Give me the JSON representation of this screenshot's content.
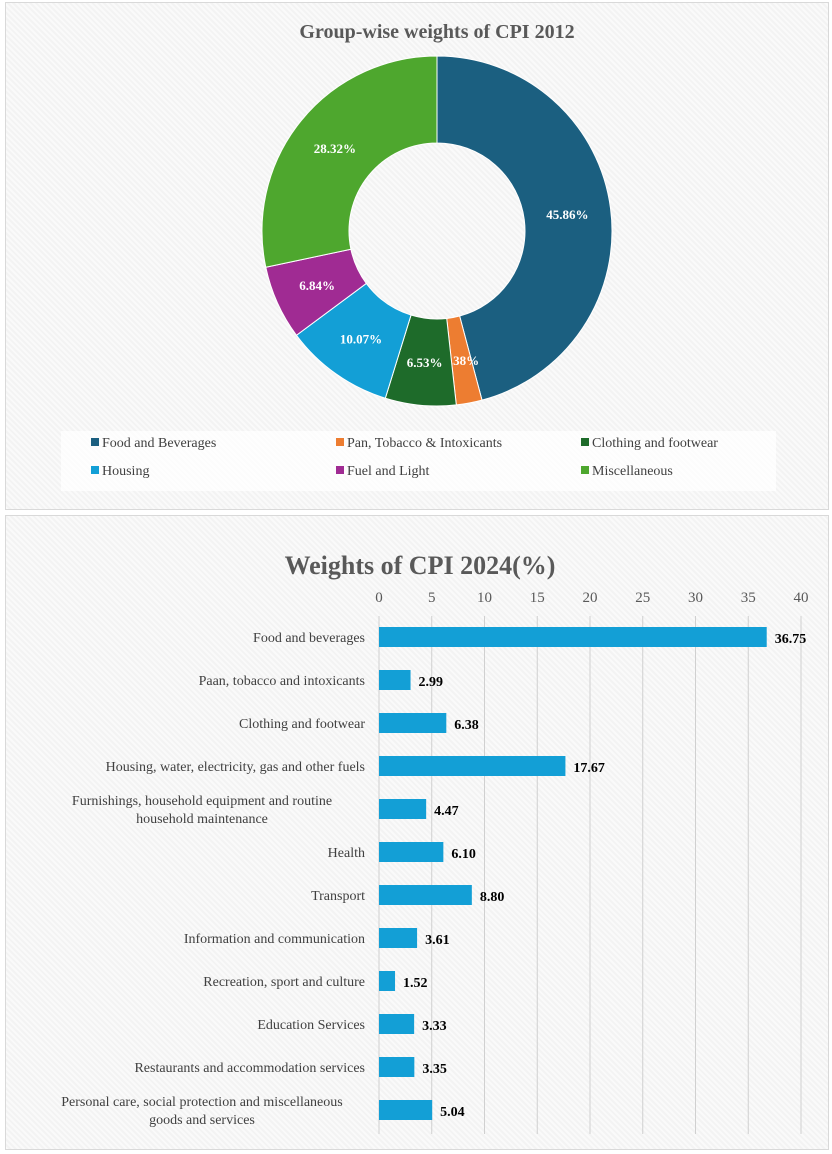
{
  "chart_data": [
    {
      "type": "pie",
      "subtype": "donut",
      "title": "Group-wise weights of CPI 2012",
      "categories": [
        "Food and Beverages",
        "Pan, Tobacco & Intoxicants",
        "Clothing and footwear",
        "Housing",
        "Fuel and Light",
        "Miscellaneous"
      ],
      "values": [
        45.86,
        2.38,
        6.53,
        10.07,
        6.84,
        28.32
      ],
      "labels": [
        "45.86%",
        "2.38%",
        "6.53%",
        "10.07%",
        "6.84%",
        "28.32%"
      ],
      "colors": [
        "#1b5f80",
        "#ed7d31",
        "#1e6b2a",
        "#139fd6",
        "#a02b93",
        "#4ea72e"
      ],
      "legend": "bottom"
    },
    {
      "type": "bar",
      "orientation": "horizontal",
      "title": "Weights of CPI 2024(%)",
      "categories": [
        "Food and beverages",
        "Paan, tobacco and intoxicants",
        "Clothing and footwear",
        "Housing, water, electricity, gas and other fuels",
        "Furnishings, household equipment and routine household maintenance",
        "Health",
        "Transport",
        "Information and communication",
        "Recreation, sport and culture",
        "Education Services",
        "Restaurants and accommodation services",
        "Personal care, social protection and miscellaneous goods and services"
      ],
      "values": [
        36.75,
        2.99,
        6.38,
        17.67,
        4.47,
        6.1,
        8.8,
        3.61,
        1.52,
        3.33,
        3.35,
        5.04
      ],
      "data_labels": [
        "36.75",
        "2.99",
        "6.38",
        "17.67",
        "4.47",
        "6.10",
        "8.80",
        "3.61",
        "1.52",
        "3.33",
        "3.35",
        "5.04"
      ],
      "xlim": [
        0,
        40
      ],
      "xticks": [
        "0",
        "5",
        "10",
        "15",
        "20",
        "25",
        "30",
        "35",
        "40"
      ],
      "axis_position": "top",
      "grid": true,
      "color": "#139fd6"
    }
  ]
}
